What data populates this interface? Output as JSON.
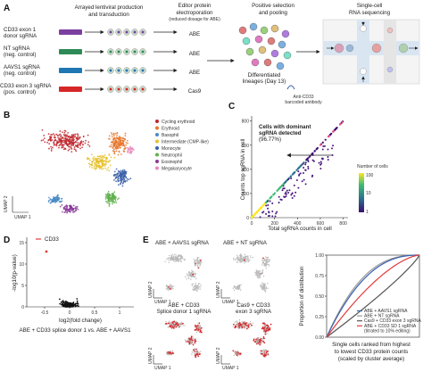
{
  "panels": {
    "a": "A",
    "b": "B",
    "c": "C",
    "d": "D",
    "e": "E"
  },
  "panel_a": {
    "sgrnas": [
      {
        "line1": "CD33 exon 1",
        "line2": "donor sgRNA",
        "color": "#7b3fa0"
      },
      {
        "line1": "NT sgRNA",
        "line2": "(neg. control)",
        "color": "#2e8b57"
      },
      {
        "line1": "AAVS1 sgRNA",
        "line2": "(neg. control)",
        "color": "#1f77b4"
      },
      {
        "line1": "CD33 exon 3 sgRNA",
        "line2": "(pos. control)",
        "color": "#d62728"
      }
    ],
    "step1": {
      "line1": "Arrayed lentiviral production",
      "line2": "and transduction"
    },
    "step2": {
      "line1": "Editor protein",
      "line2": "electroporation",
      "line3": "(reduced dosage for ABE)"
    },
    "editors": [
      "ABE",
      "ABE",
      "ABE",
      "Cas9"
    ],
    "step3": {
      "line1": "Positive selection",
      "line2": "and pooling"
    },
    "differentiated": {
      "line1": "Differentiated",
      "line2": "lineages (Day 13)"
    },
    "antibody": {
      "line1": "Anti-CD33",
      "line2": "barcoded antibody"
    },
    "step4": {
      "line1": "Single-cell",
      "line2": "RNA sequencing"
    }
  },
  "panel_b": {
    "umap_x": "UMAP 1",
    "umap_y": "UMAP 2",
    "legend": [
      {
        "label": "Cycling erythroid",
        "color": "#c0262d"
      },
      {
        "label": "Erythroid",
        "color": "#e8762b"
      },
      {
        "label": "Basophil",
        "color": "#4a8bc4"
      },
      {
        "label": "Intermediate (CMP-like)",
        "color": "#e6c12b"
      },
      {
        "label": "Monocyte",
        "color": "#3a5fa8"
      },
      {
        "label": "Neutrophil",
        "color": "#5fb04a"
      },
      {
        "label": "Eosinophil",
        "color": "#8a3a9a"
      },
      {
        "label": "Megakaryocyte",
        "color": "#e88bbd"
      }
    ]
  },
  "panel_c": {
    "annotation": {
      "line1": "Cells with dominant",
      "line2": "sgRNA detected",
      "line3": "(96.77%)"
    },
    "ylabel": {
      "line1": "Counts top sgRNA in cell"
    },
    "xlabel": "Total sgRNA counts in cell",
    "colorbar_title": {
      "line1": "Number of cells"
    },
    "colorbar_ticks": [
      "100",
      "10",
      "1"
    ],
    "x_ticks": [
      "0",
      "200",
      "400",
      "600",
      "800"
    ],
    "y_ticks": [
      "0",
      "200",
      "400",
      "600",
      "800"
    ]
  },
  "panel_d": {
    "legend": "CD33",
    "legend_color": "#e23b3b",
    "ylabel": "-log10(p-value)",
    "xlabel": "log2(fold change)",
    "y_ticks": [
      "0",
      "5",
      "10",
      "15"
    ],
    "x_ticks": [
      "-0.5",
      "0",
      "0.5",
      "1"
    ],
    "caption": "ABE + CD33 splice donor 1 vs. ABE + AAVS1"
  },
  "panel_e": {
    "umaps": [
      {
        "line1": "ABE + AAVS1 sgRNA",
        "line2": ""
      },
      {
        "line1": "ABE + NT sgRNA",
        "line2": ""
      },
      {
        "line1": "ABE + CD33",
        "line2": "Splice donor 1 sgRNA"
      },
      {
        "line1": "Cas9 + CD33",
        "line2": "exon 3 sgRNA"
      }
    ],
    "umap_x": "UMAP 1",
    "umap_y": "UMAP 2",
    "ylabel": "Proportion of distribution",
    "y_ticks": [
      "0.00",
      "0.25",
      "0.50",
      "0.75",
      "1.00"
    ],
    "xlabel": {
      "line1": "Single cells ranked from highest",
      "line2": "to lowest CD33 protein counts",
      "line3": "(scaled by cluster average)"
    },
    "legend": [
      {
        "label": "ABE + AAVS1 sgRNA",
        "color": "#3a60b0"
      },
      {
        "label": "ABE + NT sgRNA",
        "color": "#999999"
      },
      {
        "label": "Cas9 + CD33 exon 3 sgRNA",
        "color": "#555555"
      },
      {
        "label": "ABE + CD33 SD 1 sgRNA",
        "color": "#e23b3b"
      },
      {
        "label": "(titrated to 10% editing)",
        "color": ""
      }
    ]
  }
}
